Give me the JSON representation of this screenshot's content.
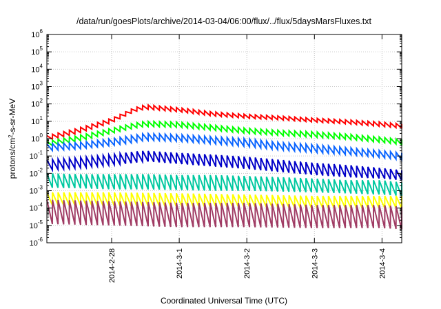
{
  "chart_data": {
    "type": "line",
    "title": "/data/run/goesPlots/archive/2014-03-04/06:00/flux/../flux/5daysMarsFluxes.txt",
    "xlabel": "Coordinated Universal Time (UTC)",
    "ylabel": "protons/cm²-s-sr-MeV",
    "yscale": "log",
    "ylim": [
      1e-06,
      1000000.0
    ],
    "xlim": [
      "2014-02-27T01:00",
      "2014-03-04T07:00"
    ],
    "grid": true,
    "legend": "none",
    "x_ticks": [
      "2014-2-28",
      "2014-3-1",
      "2014-3-2",
      "2014-3-3",
      "2014-3-4"
    ],
    "y_ticks": [
      {
        "mantissa": "10",
        "exp": "-6"
      },
      {
        "mantissa": "10",
        "exp": "-5"
      },
      {
        "mantissa": "10",
        "exp": "-4"
      },
      {
        "mantissa": "10",
        "exp": "-3"
      },
      {
        "mantissa": "10",
        "exp": "-2"
      },
      {
        "mantissa": "10",
        "exp": "-1"
      },
      {
        "mantissa": "10",
        "exp": "0"
      },
      {
        "mantissa": "10",
        "exp": "1"
      },
      {
        "mantissa": "10",
        "exp": "2"
      },
      {
        "mantissa": "10",
        "exp": "3"
      },
      {
        "mantissa": "10",
        "exp": "4"
      },
      {
        "mantissa": "10",
        "exp": "5"
      },
      {
        "mantissa": "10",
        "exp": "6"
      }
    ],
    "sawtooth_period_hours": 2,
    "series": [
      {
        "color": "#ff0000",
        "x": [
          "2014-02-27T01:00",
          "2014-02-27T12:00",
          "2014-02-28T00:00",
          "2014-02-28T08:00",
          "2014-02-28T12:00",
          "2014-03-01T00:00",
          "2014-03-01T12:00",
          "2014-03-02T00:00",
          "2014-03-02T12:00",
          "2014-03-03T00:00",
          "2014-03-03T12:00",
          "2014-03-04T00:00",
          "2014-03-04T07:00"
        ],
        "y": [
          1.5,
          4,
          15,
          60,
          90,
          60,
          35,
          25,
          20,
          15,
          12,
          9,
          7
        ],
        "y_low": [
          0.8,
          2,
          8,
          35,
          50,
          35,
          20,
          15,
          12,
          9,
          7,
          5,
          4
        ]
      },
      {
        "color": "#00ff00",
        "x": [
          "2014-02-27T01:00",
          "2014-02-27T12:00",
          "2014-02-28T00:00",
          "2014-02-28T08:00",
          "2014-02-28T12:00",
          "2014-03-01T00:00",
          "2014-03-01T12:00",
          "2014-03-02T00:00",
          "2014-03-02T12:00",
          "2014-03-03T00:00",
          "2014-03-03T12:00",
          "2014-03-04T00:00",
          "2014-03-04T07:00"
        ],
        "y": [
          0.7,
          1.5,
          4,
          8,
          10,
          9,
          6,
          4,
          3,
          2.5,
          1.8,
          1.2,
          0.9
        ],
        "y_low": [
          0.35,
          0.7,
          2,
          4,
          5,
          4.5,
          3,
          2,
          1.5,
          1.2,
          0.9,
          0.6,
          0.45
        ]
      },
      {
        "color": "#0a64ff",
        "x": [
          "2014-02-27T01:00",
          "2014-02-27T12:00",
          "2014-02-28T00:00",
          "2014-02-28T08:00",
          "2014-02-28T12:00",
          "2014-03-01T00:00",
          "2014-03-01T12:00",
          "2014-03-02T00:00",
          "2014-03-02T12:00",
          "2014-03-03T00:00",
          "2014-03-03T12:00",
          "2014-03-04T00:00",
          "2014-03-04T07:00"
        ],
        "y": [
          0.5,
          0.6,
          1,
          1.6,
          2,
          1.7,
          1.3,
          1,
          0.6,
          0.45,
          0.3,
          0.2,
          0.15
        ],
        "y_low": [
          0.2,
          0.25,
          0.4,
          0.6,
          0.8,
          0.7,
          0.5,
          0.35,
          0.22,
          0.16,
          0.12,
          0.08,
          0.06
        ]
      },
      {
        "color": "#0000c8",
        "x": [
          "2014-02-27T01:00",
          "2014-02-27T12:00",
          "2014-02-28T00:00",
          "2014-02-28T08:00",
          "2014-02-28T12:00",
          "2014-03-01T00:00",
          "2014-03-01T12:00",
          "2014-03-02T00:00",
          "2014-03-02T12:00",
          "2014-03-03T00:00",
          "2014-03-03T12:00",
          "2014-03-04T00:00",
          "2014-03-04T07:00"
        ],
        "y": [
          0.06,
          0.08,
          0.12,
          0.18,
          0.2,
          0.15,
          0.12,
          0.09,
          0.06,
          0.04,
          0.03,
          0.02,
          0.015
        ],
        "y_low": [
          0.015,
          0.02,
          0.03,
          0.04,
          0.05,
          0.035,
          0.025,
          0.018,
          0.012,
          0.008,
          0.006,
          0.005,
          0.004
        ]
      },
      {
        "color": "#00c8a0",
        "x": [
          "2014-02-27T01:00",
          "2014-02-27T12:00",
          "2014-02-28T00:00",
          "2014-02-28T08:00",
          "2014-02-28T12:00",
          "2014-03-01T00:00",
          "2014-03-01T12:00",
          "2014-03-02T00:00",
          "2014-03-02T12:00",
          "2014-03-03T00:00",
          "2014-03-03T12:00",
          "2014-03-04T00:00",
          "2014-03-04T07:00"
        ],
        "y": [
          0.01,
          0.009,
          0.009,
          0.009,
          0.009,
          0.008,
          0.008,
          0.007,
          0.006,
          0.005,
          0.004,
          0.004,
          0.003
        ],
        "y_low": [
          0.0015,
          0.0014,
          0.0012,
          0.0012,
          0.0012,
          0.0011,
          0.001,
          0.001,
          0.0009,
          0.0008,
          0.0007,
          0.0006,
          0.0005
        ]
      },
      {
        "color": "#ffff00",
        "x": [
          "2014-02-27T01:00",
          "2014-02-28T00:00",
          "2014-03-01T00:00",
          "2014-03-02T00:00",
          "2014-03-03T00:00",
          "2014-03-04T00:00",
          "2014-03-04T07:00"
        ],
        "y": [
          0.0008,
          0.0008,
          0.0007,
          0.0006,
          0.0005,
          0.0005,
          0.0005
        ],
        "y_low": [
          0.00015,
          0.00013,
          0.00012,
          0.00012,
          0.0001,
          0.0001,
          0.0001
        ]
      },
      {
        "color": "#a03c64",
        "x": [
          "2014-02-27T01:00",
          "2014-02-28T00:00",
          "2014-03-01T00:00",
          "2014-03-02T00:00",
          "2014-03-03T00:00",
          "2014-03-04T00:00",
          "2014-03-04T07:00"
        ],
        "y": [
          0.0003,
          0.00025,
          0.0002,
          0.0002,
          0.00015,
          0.00015,
          0.00012
        ],
        "y_low": [
          1.2e-05,
          1e-05,
          8e-06,
          8e-06,
          7e-06,
          7e-06,
          6e-06
        ]
      }
    ]
  }
}
